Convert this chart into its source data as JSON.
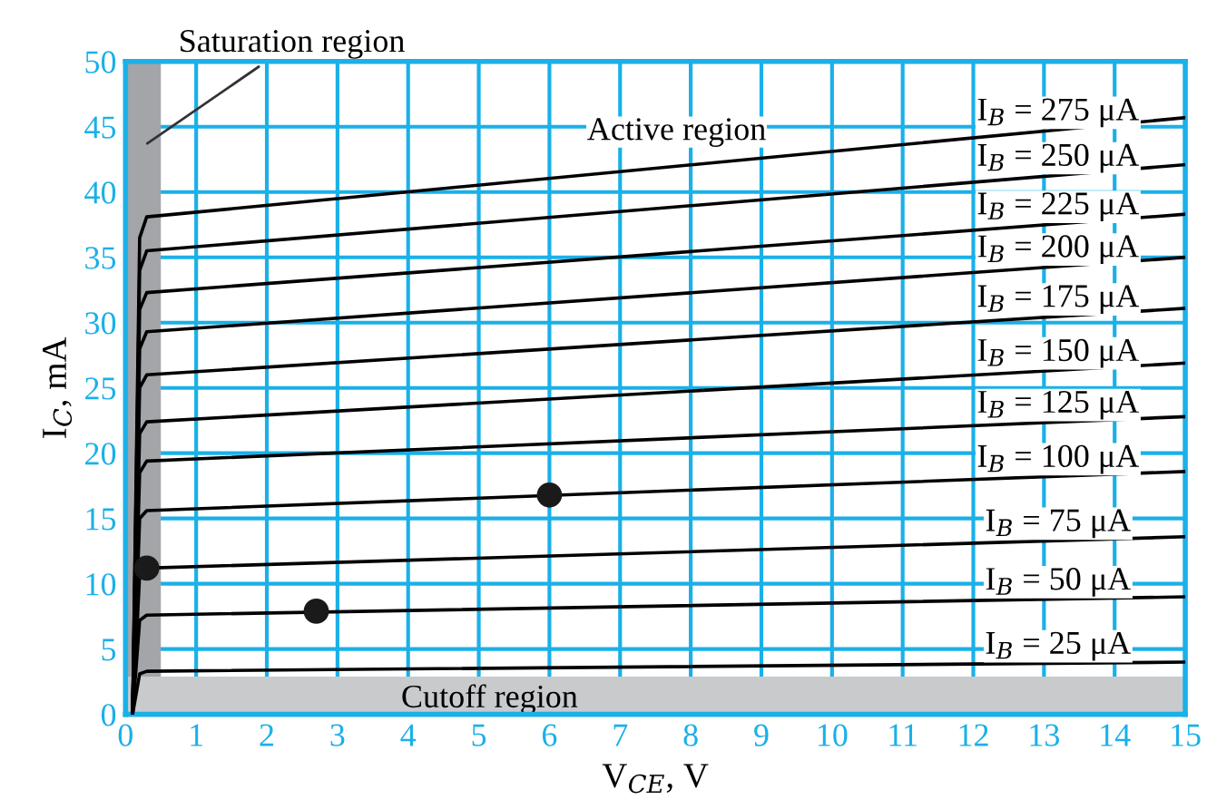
{
  "chart_data": {
    "type": "line",
    "xlabel": "V$_{CE}$, V",
    "ylabel": "I$_{C}$, mA",
    "xlim": [
      0,
      15
    ],
    "ylim": [
      0,
      50
    ],
    "xticks": [
      0,
      1,
      2,
      3,
      4,
      5,
      6,
      7,
      8,
      9,
      10,
      11,
      12,
      13,
      14,
      15
    ],
    "yticks": [
      0,
      5,
      10,
      15,
      20,
      25,
      30,
      35,
      40,
      45,
      50
    ],
    "grid": true,
    "marker": "none",
    "line_style": "solid",
    "series": [
      {
        "name": "I$_{B}$ = 275 μA",
        "color": "#000000",
        "x": [
          0.1,
          0.2,
          0.3,
          15
        ],
        "values": [
          0,
          36.5,
          38.1,
          45.7
        ]
      },
      {
        "name": "I$_{B}$ = 250 μA",
        "color": "#000000",
        "x": [
          0.1,
          0.2,
          0.3,
          15
        ],
        "values": [
          0,
          34,
          35.5,
          42.1
        ]
      },
      {
        "name": "I$_{B}$ = 225 μA",
        "color": "#000000",
        "x": [
          0.1,
          0.2,
          0.3,
          15
        ],
        "values": [
          0,
          31,
          32.3,
          38.3
        ]
      },
      {
        "name": "I$_{B}$ = 200 μA",
        "color": "#000000",
        "x": [
          0.1,
          0.2,
          0.3,
          15
        ],
        "values": [
          0,
          28,
          29.3,
          35
        ]
      },
      {
        "name": "I$_{B}$ = 175 μA",
        "color": "#000000",
        "x": [
          0.1,
          0.2,
          0.3,
          15
        ],
        "values": [
          0,
          25,
          26,
          31.1
        ]
      },
      {
        "name": "I$_{B}$ = 150 μA",
        "color": "#000000",
        "x": [
          0.1,
          0.2,
          0.3,
          15
        ],
        "values": [
          0,
          21.5,
          22.4,
          26.9
        ]
      },
      {
        "name": "I$_{B}$ = 125 μA",
        "color": "#000000",
        "x": [
          0.1,
          0.2,
          0.3,
          15
        ],
        "values": [
          0,
          18.5,
          19.4,
          22.8
        ]
      },
      {
        "name": "I$_{B}$ = 100 μA",
        "color": "#000000",
        "x": [
          0.1,
          0.2,
          0.3,
          15
        ],
        "values": [
          0,
          15,
          15.6,
          18.6
        ]
      },
      {
        "name": "I$_{B}$ = 75 μA",
        "color": "#000000",
        "x": [
          0.1,
          0.2,
          0.3,
          15
        ],
        "values": [
          0,
          10.7,
          11.2,
          13.6
        ]
      },
      {
        "name": "I$_{B}$ = 50 μA",
        "color": "#000000",
        "x": [
          0.1,
          0.2,
          0.3,
          15
        ],
        "values": [
          0,
          7.2,
          7.6,
          9
        ]
      },
      {
        "name": "I$_{B}$ = 25 μA",
        "color": "#000000",
        "x": [
          0.1,
          0.2,
          0.3,
          15
        ],
        "values": [
          0,
          3.1,
          3.3,
          4
        ]
      },
      {
        "type": "scatter",
        "color": "#1a1a1a",
        "marker": "circle",
        "x": [
          0.3,
          2.7,
          6
        ],
        "values": [
          11.2,
          7.9,
          16.8
        ]
      }
    ],
    "bands": [
      {
        "axis": "x",
        "from": 0,
        "to": 0.5,
        "label": "Saturation region",
        "color": "#a3a5a8"
      },
      {
        "axis": "y",
        "from": 0,
        "to": 2.9,
        "label": "Cutoff region",
        "color": "#c9cacc"
      }
    ],
    "annotations": [
      "Active region"
    ]
  }
}
